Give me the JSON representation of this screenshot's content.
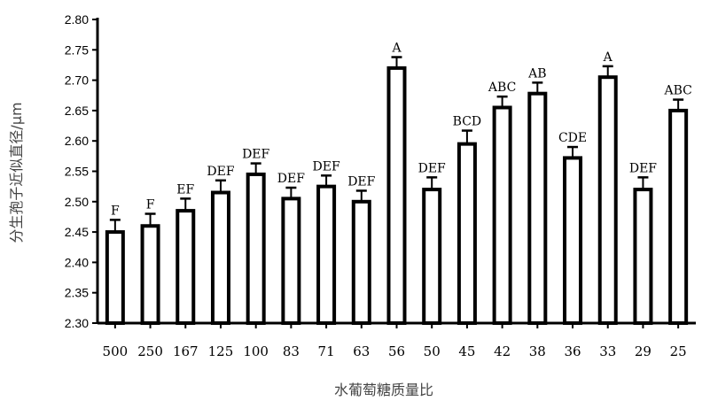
{
  "chart_data": {
    "type": "bar",
    "xlabel": "水葡萄糖质量比",
    "ylabel": "分生孢子近似直径/μm",
    "categories": [
      "500",
      "250",
      "167",
      "125",
      "100",
      "83",
      "71",
      "63",
      "56",
      "50",
      "45",
      "42",
      "38",
      "36",
      "33",
      "29",
      "25"
    ],
    "values": [
      2.45,
      2.46,
      2.485,
      2.515,
      2.545,
      2.505,
      2.525,
      2.5,
      2.72,
      2.52,
      2.595,
      2.655,
      2.678,
      2.572,
      2.705,
      2.52,
      2.65
    ],
    "errors": [
      0.02,
      0.02,
      0.02,
      0.02,
      0.018,
      0.018,
      0.018,
      0.018,
      0.018,
      0.02,
      0.022,
      0.018,
      0.018,
      0.018,
      0.018,
      0.02,
      0.018
    ],
    "significance": [
      "F",
      "F",
      "EF",
      "DEF",
      "DEF",
      "DEF",
      "DEF",
      "DEF",
      "A",
      "DEF",
      "BCD",
      "ABC",
      "AB",
      "CDE",
      "A",
      "DEF",
      "ABC"
    ],
    "yticks": [
      "2.30",
      "2.35",
      "2.40",
      "2.45",
      "2.50",
      "2.55",
      "2.60",
      "2.65",
      "2.70",
      "2.75",
      "2.80"
    ],
    "ylim": [
      2.3,
      2.8
    ],
    "grid": false,
    "bar_fill": "#ffffff",
    "bar_stroke": "#000000"
  }
}
